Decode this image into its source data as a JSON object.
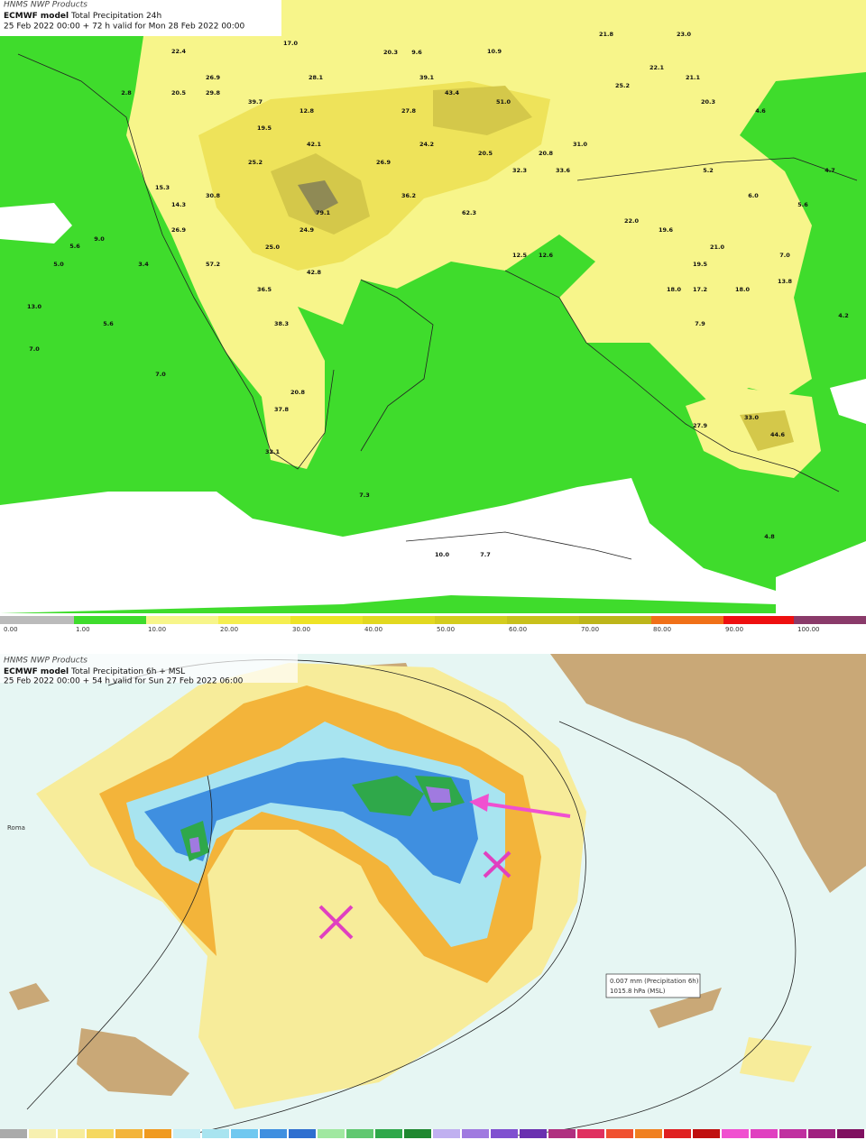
{
  "top_map": {
    "source": "HNMS NWP Products",
    "model": "ECMWF model",
    "product": "Total Precipitation 24h",
    "validity": "25 Feb 2022 00:00 + 72 h valid for Mon 28 Feb 2022 00:00",
    "labels": [
      "17.0",
      "22.4",
      "20.3",
      "9.6",
      "10.9",
      "21.8",
      "23.0",
      "26.9",
      "28.1",
      "39.1",
      "22.1",
      "21.1",
      "2.8",
      "20.5",
      "29.8",
      "39.7",
      "43.4",
      "51.0",
      "25.2",
      "20.3",
      "4.6",
      "12.8",
      "27.8",
      "19.5",
      "42.1",
      "24.2",
      "31.0",
      "25.2",
      "20.5",
      "20.8",
      "26.9",
      "32.3",
      "33.6",
      "5.2",
      "4.7",
      "15.3",
      "30.8",
      "36.2",
      "6.0",
      "14.3",
      "79.1",
      "62.3",
      "5.6",
      "26.9",
      "24.9",
      "22.0",
      "19.6",
      "9.0",
      "5.6",
      "25.0",
      "21.0",
      "5.0",
      "57.2",
      "12.5",
      "12.6",
      "19.5",
      "7.0",
      "3.4",
      "42.8",
      "36.5",
      "18.0",
      "17.2",
      "18.0",
      "13.8",
      "13.0",
      "5.6",
      "38.3",
      "7.9",
      "4.2",
      "7.0",
      "7.0",
      "20.8",
      "37.8",
      "27.9",
      "33.0",
      "44.6",
      "32.1",
      "7.3",
      "10.0",
      "7.7",
      "4.8"
    ],
    "colorbar": [
      "0.00",
      "1.00",
      "10.00",
      "20.00",
      "30.00",
      "40.00",
      "50.00",
      "60.00",
      "70.00",
      "80.00",
      "90.00",
      "100.00"
    ]
  },
  "bottom_map": {
    "source": "HNMS NWP Products",
    "model": "ECMWF model",
    "product": "Total Precipitation 6h + MSL",
    "validity": "25 Feb 2022 00:00 + 54 h valid for Sun 27 Feb 2022 06:00",
    "legend": [
      "0.007 mm (Precipitation 6h)",
      "1015.8 hPa (MSL)"
    ],
    "place": "Roma"
  }
}
